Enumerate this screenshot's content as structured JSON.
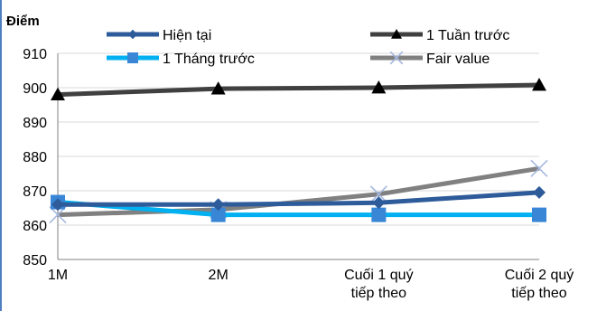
{
  "chart_data": {
    "type": "line",
    "title": "",
    "ylabel": "Điểm",
    "xlabel": "",
    "categories": [
      [
        "1M"
      ],
      [
        "2M"
      ],
      [
        "Cuối 1 quý",
        "tiếp theo"
      ],
      [
        "Cuối 2 quý",
        "tiếp theo"
      ]
    ],
    "ylim": [
      850,
      910
    ],
    "yticks": [
      850,
      860,
      870,
      880,
      890,
      900,
      910
    ],
    "grid": true,
    "legend_position": "top",
    "series": [
      {
        "name": "Hiện tại",
        "values": [
          866,
          866,
          866.5,
          869.5
        ],
        "color": "#2e5b9a",
        "marker": "diamond"
      },
      {
        "name": "1 Tuần trước",
        "values": [
          898,
          899.7,
          900,
          900.8
        ],
        "color": "#404040",
        "marker": "triangle"
      },
      {
        "name": "1 Tháng trước",
        "values": [
          866.7,
          863,
          863,
          863
        ],
        "color": "#00b0f0",
        "marker": "square"
      },
      {
        "name": "Fair value",
        "values": [
          863,
          864.5,
          869,
          876.5
        ],
        "color": "#808080",
        "marker": "x"
      }
    ]
  }
}
